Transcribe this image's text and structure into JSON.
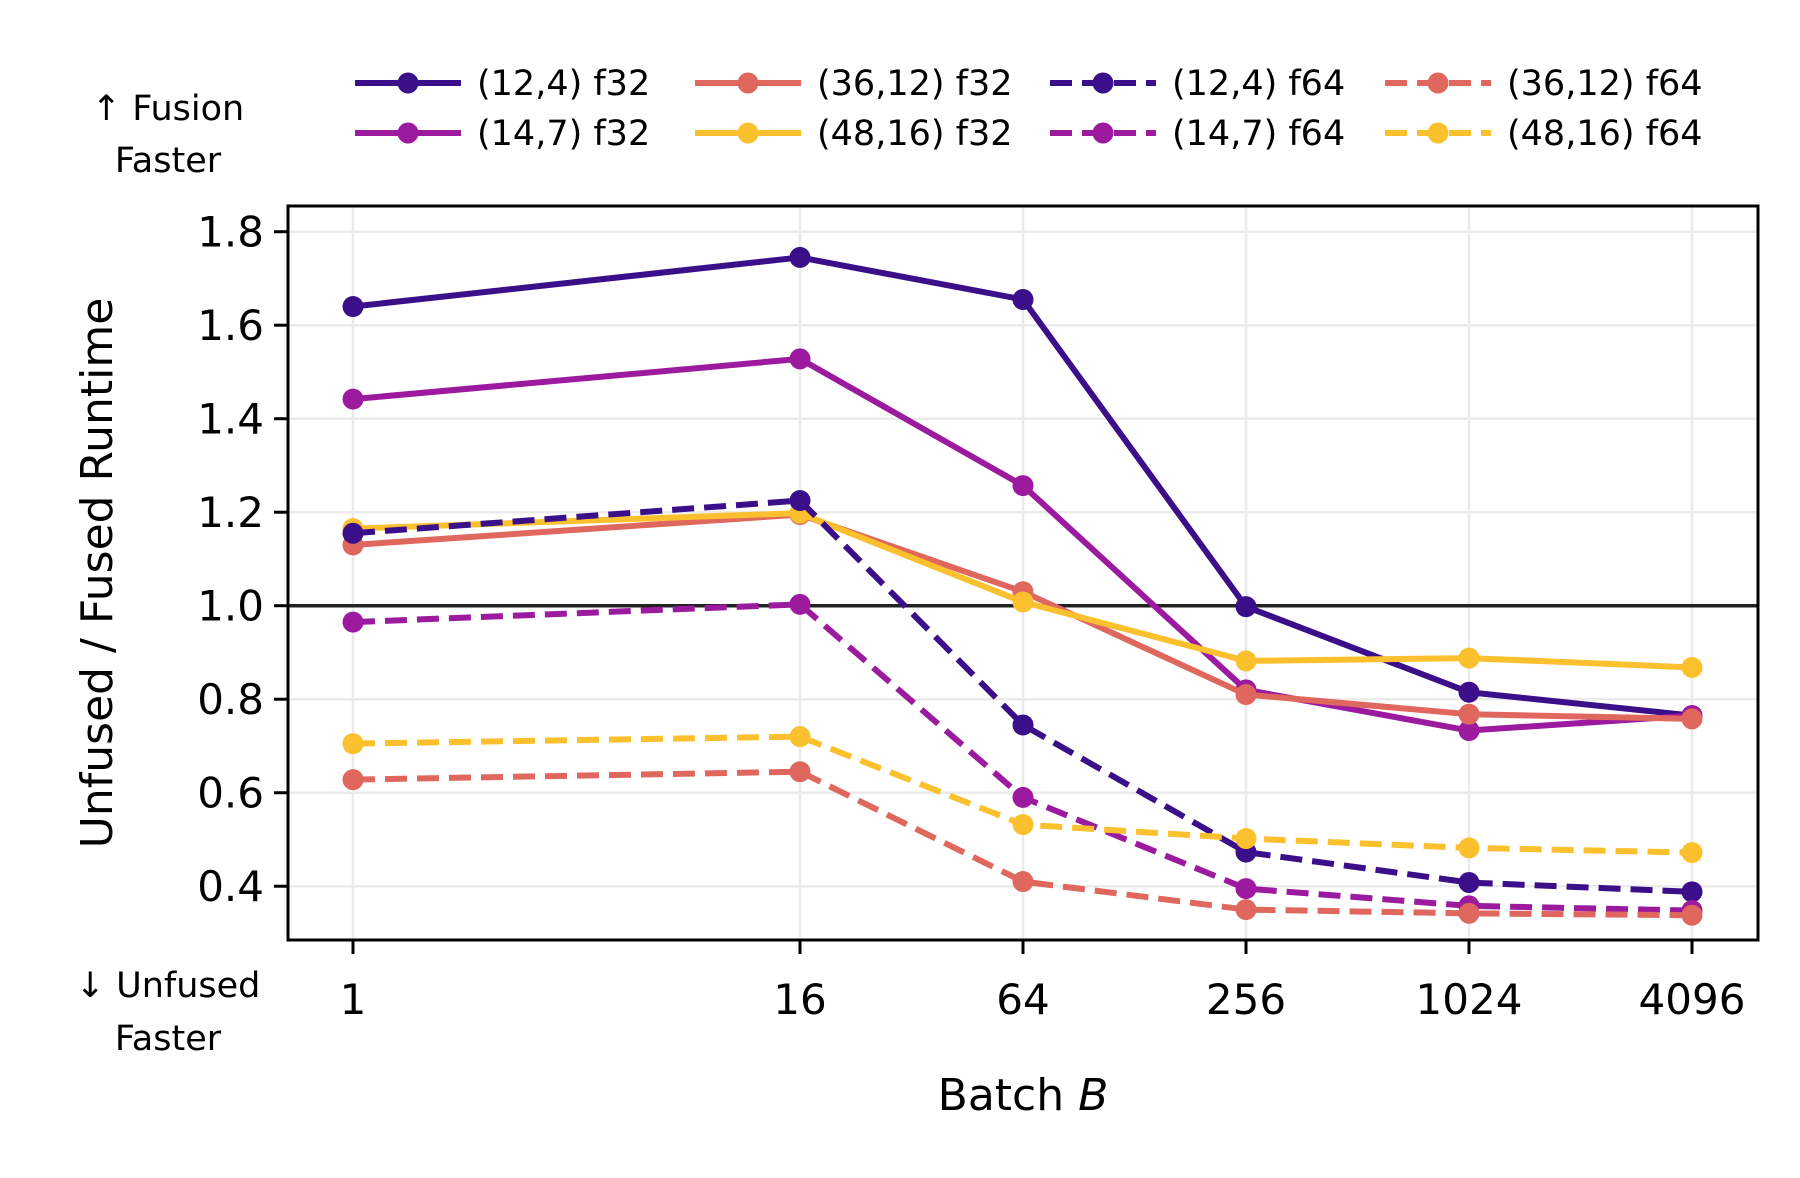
{
  "chart_data": {
    "type": "line",
    "title": "",
    "xlabel": "Batch",
    "xlabel_var": "B",
    "ylabel": "Unfused / Fused Runtime",
    "x_scale": "log2",
    "x": [
      1,
      16,
      64,
      256,
      1024,
      4096
    ],
    "x_tick_labels": [
      "1",
      "16",
      "64",
      "256",
      "1024",
      "4096"
    ],
    "y_ticks": [
      0.4,
      0.6,
      0.8,
      1.0,
      1.2,
      1.4,
      1.6,
      1.8
    ],
    "y_tick_labels": [
      "0.4",
      "0.6",
      "0.8",
      "1.0",
      "1.2",
      "1.4",
      "1.6",
      "1.8"
    ],
    "ylim": [
      0.285,
      1.855
    ],
    "grid": true,
    "reference_line": 1.0,
    "legend_placement": "top",
    "annotations": {
      "top": [
        "↑ Fusion",
        "Faster"
      ],
      "bottom": [
        "↓ Unfused",
        "Faster"
      ]
    },
    "series": [
      {
        "name": "(12,4) f32",
        "color": "#3b0f8a",
        "dash": "solid",
        "values": [
          1.64,
          1.745,
          1.655,
          0.998,
          0.815,
          0.765
        ]
      },
      {
        "name": "(14,7) f32",
        "color": "#9b1a9e",
        "dash": "solid",
        "values": [
          1.442,
          1.528,
          1.257,
          0.82,
          0.733,
          0.765
        ]
      },
      {
        "name": "(36,12) f32",
        "color": "#e0675e",
        "dash": "solid",
        "values": [
          1.13,
          1.195,
          1.03,
          0.81,
          0.768,
          0.758
        ]
      },
      {
        "name": "(48,16) f32",
        "color": "#fbc02d",
        "dash": "solid",
        "values": [
          1.165,
          1.198,
          1.008,
          0.882,
          0.888,
          0.868
        ]
      },
      {
        "name": "(12,4) f64",
        "color": "#3b0f8a",
        "dash": "dashed",
        "values": [
          1.155,
          1.225,
          0.745,
          0.473,
          0.408,
          0.388
        ]
      },
      {
        "name": "(14,7) f64",
        "color": "#9b1a9e",
        "dash": "dashed",
        "values": [
          0.965,
          1.003,
          0.59,
          0.395,
          0.358,
          0.348
        ]
      },
      {
        "name": "(36,12) f64",
        "color": "#e0675e",
        "dash": "dashed",
        "values": [
          0.628,
          0.645,
          0.41,
          0.35,
          0.342,
          0.338
        ]
      },
      {
        "name": "(48,16) f64",
        "color": "#fbc02d",
        "dash": "dashed",
        "values": [
          0.705,
          0.72,
          0.532,
          0.502,
          0.482,
          0.472
        ]
      }
    ]
  }
}
